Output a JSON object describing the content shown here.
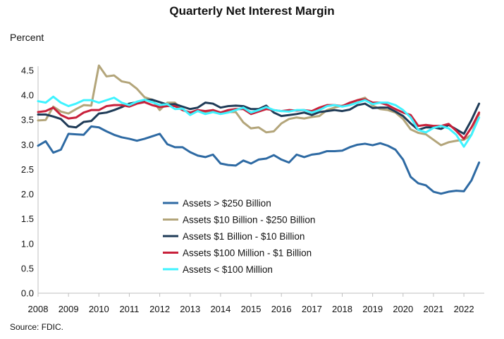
{
  "chart_data": {
    "type": "line",
    "title": "Quarterly Net Interest Margin",
    "ylabel": "Percent",
    "xlabel": "",
    "source": "Source: FDIC.",
    "ylim": [
      0,
      4.5
    ],
    "yticks": [
      "0.0",
      "0.5",
      "1.0",
      "1.5",
      "2.0",
      "2.5",
      "3.0",
      "3.5",
      "4.0",
      "4.5"
    ],
    "xticks": [
      "2008",
      "2009",
      "2010",
      "2011",
      "2012",
      "2013",
      "2014",
      "2015",
      "2016",
      "2017",
      "2018",
      "2019",
      "2020",
      "2021",
      "2022"
    ],
    "grid": false,
    "legend_position": "center",
    "series": [
      {
        "name": "Assets > $250 Billion",
        "color": "#2e6aa3",
        "values": [
          2.98,
          3.07,
          2.84,
          2.9,
          3.22,
          3.21,
          3.2,
          3.37,
          3.35,
          3.27,
          3.2,
          3.15,
          3.12,
          3.08,
          3.12,
          3.17,
          3.22,
          3.01,
          2.95,
          2.95,
          2.85,
          2.78,
          2.75,
          2.8,
          2.62,
          2.59,
          2.58,
          2.68,
          2.62,
          2.7,
          2.72,
          2.79,
          2.7,
          2.64,
          2.8,
          2.75,
          2.8,
          2.82,
          2.87,
          2.87,
          2.88,
          2.95,
          3.0,
          3.02,
          2.99,
          3.03,
          2.98,
          2.9,
          2.7,
          2.35,
          2.22,
          2.18,
          2.05,
          2.01,
          2.05,
          2.07,
          2.06,
          2.28,
          2.64
        ]
      },
      {
        "name": "Assets  $10 Billion - $250 Billion",
        "color": "#b3a57a",
        "values": [
          3.49,
          3.5,
          3.77,
          3.67,
          3.63,
          3.72,
          3.8,
          3.79,
          4.6,
          4.38,
          4.4,
          4.28,
          4.25,
          4.13,
          3.96,
          3.91,
          3.7,
          3.85,
          3.85,
          3.7,
          3.65,
          3.68,
          3.65,
          3.7,
          3.65,
          3.66,
          3.66,
          3.45,
          3.33,
          3.35,
          3.25,
          3.27,
          3.43,
          3.52,
          3.55,
          3.53,
          3.56,
          3.58,
          3.7,
          3.75,
          3.79,
          3.81,
          3.9,
          3.95,
          3.79,
          3.72,
          3.7,
          3.65,
          3.52,
          3.31,
          3.24,
          3.21,
          3.1,
          2.99,
          3.05,
          3.08,
          3.1,
          3.2,
          3.62
        ]
      },
      {
        "name": "Assets  $1 Billion - $10 Billion",
        "color": "#1f3b57",
        "values": [
          3.61,
          3.61,
          3.57,
          3.52,
          3.37,
          3.35,
          3.46,
          3.48,
          3.63,
          3.65,
          3.7,
          3.76,
          3.83,
          3.86,
          3.9,
          3.91,
          3.86,
          3.81,
          3.82,
          3.77,
          3.72,
          3.75,
          3.85,
          3.83,
          3.75,
          3.78,
          3.79,
          3.78,
          3.72,
          3.72,
          3.79,
          3.65,
          3.58,
          3.6,
          3.62,
          3.65,
          3.6,
          3.66,
          3.68,
          3.7,
          3.68,
          3.71,
          3.8,
          3.83,
          3.74,
          3.75,
          3.75,
          3.67,
          3.58,
          3.43,
          3.3,
          3.35,
          3.35,
          3.32,
          3.4,
          3.31,
          3.22,
          3.5,
          3.83
        ]
      },
      {
        "name": "Assets  $100 Million - $1 Billion",
        "color": "#c8203a",
        "values": [
          3.66,
          3.68,
          3.75,
          3.6,
          3.53,
          3.55,
          3.65,
          3.7,
          3.7,
          3.78,
          3.8,
          3.8,
          3.77,
          3.83,
          3.86,
          3.8,
          3.76,
          3.78,
          3.78,
          3.7,
          3.65,
          3.7,
          3.68,
          3.7,
          3.65,
          3.7,
          3.72,
          3.72,
          3.62,
          3.67,
          3.72,
          3.7,
          3.68,
          3.7,
          3.69,
          3.7,
          3.68,
          3.75,
          3.8,
          3.8,
          3.78,
          3.85,
          3.9,
          3.92,
          3.85,
          3.85,
          3.8,
          3.72,
          3.65,
          3.6,
          3.38,
          3.4,
          3.38,
          3.38,
          3.42,
          3.28,
          3.12,
          3.35,
          3.65
        ]
      },
      {
        "name": "Assets < $100 Million",
        "color": "#3ff3ff",
        "values": [
          3.88,
          3.85,
          3.97,
          3.85,
          3.78,
          3.83,
          3.9,
          3.9,
          3.85,
          3.9,
          3.95,
          3.85,
          3.8,
          3.87,
          3.91,
          3.86,
          3.8,
          3.82,
          3.72,
          3.73,
          3.6,
          3.68,
          3.62,
          3.66,
          3.62,
          3.65,
          3.7,
          3.75,
          3.65,
          3.7,
          3.76,
          3.7,
          3.68,
          3.67,
          3.7,
          3.7,
          3.65,
          3.7,
          3.78,
          3.8,
          3.77,
          3.8,
          3.85,
          3.9,
          3.82,
          3.85,
          3.85,
          3.8,
          3.7,
          3.55,
          3.3,
          3.25,
          3.34,
          3.38,
          3.33,
          3.2,
          2.96,
          3.2,
          3.55
        ]
      }
    ]
  }
}
